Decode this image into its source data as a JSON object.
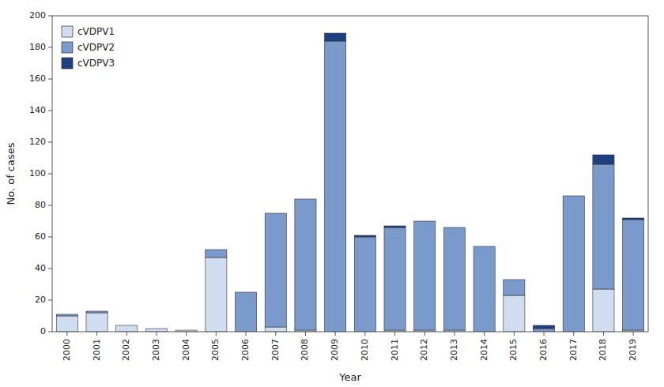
{
  "chart_data": {
    "type": "bar",
    "stacked": true,
    "xlabel": "Year",
    "ylabel": "No. of cases",
    "categories": [
      "2000",
      "2001",
      "2002",
      "2003",
      "2004",
      "2005",
      "2006",
      "2007",
      "2008",
      "2009",
      "2010",
      "2011",
      "2012",
      "2013",
      "2014",
      "2015",
      "2016",
      "2017",
      "2018",
      "2019"
    ],
    "series": [
      {
        "name": "cVDPV1",
        "color": "#d0ddf0",
        "values": [
          10,
          12,
          4,
          2,
          1,
          47,
          0,
          3,
          1,
          0,
          0,
          1,
          1,
          1,
          0,
          23,
          0,
          0,
          27,
          1
        ]
      },
      {
        "name": "cVDPV2",
        "color": "#7a9acc",
        "values": [
          1,
          1,
          0,
          0,
          0,
          5,
          25,
          72,
          83,
          184,
          60,
          65,
          69,
          65,
          54,
          10,
          2,
          86,
          79,
          70
        ]
      },
      {
        "name": "cVDPV3",
        "color": "#1e3f80",
        "values": [
          0,
          0,
          0,
          0,
          0,
          0,
          0,
          0,
          0,
          5,
          1,
          1,
          0,
          0,
          0,
          0,
          2,
          0,
          6,
          1
        ]
      }
    ],
    "ylim": [
      0,
      200
    ],
    "yticks": [
      0,
      20,
      40,
      60,
      80,
      100,
      120,
      140,
      160,
      180,
      200
    ],
    "grid": false,
    "legend": "upper left"
  }
}
